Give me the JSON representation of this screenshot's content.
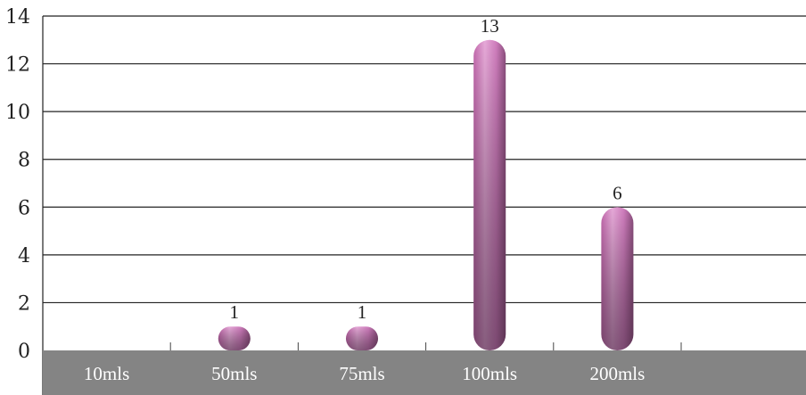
{
  "chart_data": {
    "type": "bar",
    "title": "",
    "xlabel": "",
    "ylabel": "",
    "categories": [
      "10mls",
      "50mls",
      "75mls",
      "100mls",
      "200mls"
    ],
    "values": [
      0,
      1,
      1,
      13,
      6
    ],
    "data_labels": [
      "",
      "1",
      "1",
      "13",
      "6"
    ],
    "ylim": [
      0,
      14
    ],
    "yticks": [
      0,
      2,
      4,
      6,
      8,
      10,
      12,
      14
    ],
    "ytick_labels": [
      "0",
      "2",
      "4",
      "6",
      "8",
      "10",
      "12",
      "14"
    ],
    "grid": true,
    "legend": "none",
    "colors": {
      "bar": "#d17fbf",
      "bar_highlight": "#e6a9d8",
      "bar_shadow": "#6b4260",
      "category_band": "#848484",
      "grid": "#222222"
    }
  }
}
